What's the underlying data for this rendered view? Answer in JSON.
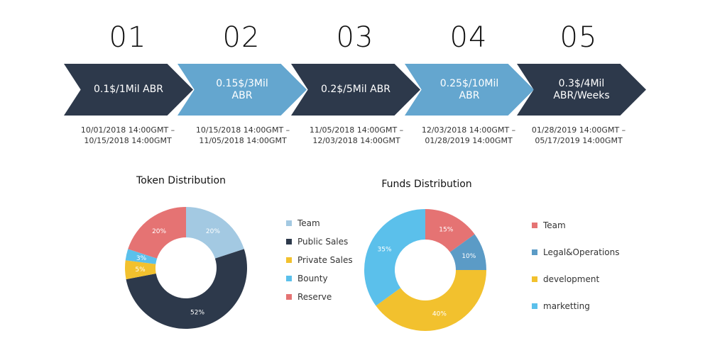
{
  "stages": [
    {
      "number": "01",
      "label": "0.1$/1Mil ABR",
      "dates": "10/01/2018 14:00GMT –\n10/15/2018 14:00GMT",
      "style": "dark"
    },
    {
      "number": "02",
      "label": "0.15$/3Mil\nABR",
      "dates": "10/15/2018 14:00GMT –\n11/05/2018 14:00GMT",
      "style": "light"
    },
    {
      "number": "03",
      "label": "0.2$/5Mil  ABR",
      "dates": "11/05/2018 14:00GMT –\n12/03/2018 14:00GMT",
      "style": "dark"
    },
    {
      "number": "04",
      "label": "0.25$/10Mil\nABR",
      "dates": "12/03/2018 14:00GMT –\n01/28/2019 14:00GMT",
      "style": "light"
    },
    {
      "number": "05",
      "label": "0.3$/4Mil\nABR/Weeks",
      "dates": "01/28/2019 14:00GMT –\n05/17/2019 14:00GMT",
      "style": "dark"
    }
  ],
  "colors": {
    "dark": "#2d394b",
    "light": "#64a6cf"
  },
  "chart_data": [
    {
      "type": "pie",
      "title": "Token Distribution",
      "categories": [
        "Team",
        "Public Sales",
        "Private Sales",
        "Bounty",
        "Reserve"
      ],
      "values": [
        20,
        52,
        5,
        3,
        20
      ],
      "labels": [
        "20%",
        "52%",
        "5%",
        "3%",
        "20%"
      ],
      "colors": [
        "#a3c9e2",
        "#2d394b",
        "#f2c12e",
        "#5bc0eb",
        "#e57373"
      ],
      "legend": "right"
    },
    {
      "type": "pie",
      "title": "Funds Distribution",
      "categories": [
        "Team",
        "Legal&Operations",
        "development",
        "marketting"
      ],
      "values": [
        15,
        10,
        40,
        35
      ],
      "labels": [
        "15%",
        "10%",
        "40%",
        "35%"
      ],
      "colors": [
        "#e57373",
        "#5b9bc6",
        "#f2c12e",
        "#5bc0eb"
      ],
      "legend": "right"
    }
  ]
}
